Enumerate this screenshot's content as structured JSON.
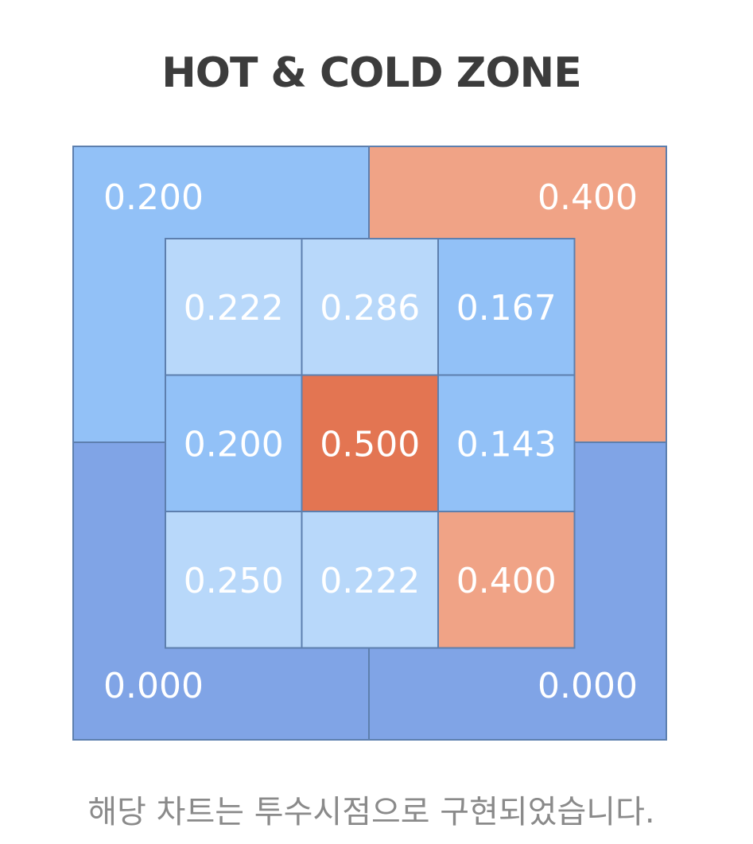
{
  "title": "HOT & COLD ZONE",
  "footnote": "해당 차트는 투수시점으로 구현되었습니다.",
  "chart_data": {
    "type": "heatmap",
    "title": "HOT & COLD ZONE",
    "inner_zone": {
      "rows": 3,
      "cols": 3,
      "values": [
        [
          0.222,
          0.286,
          0.167
        ],
        [
          0.2,
          0.5,
          0.143
        ],
        [
          0.25,
          0.222,
          0.4
        ]
      ],
      "labels": [
        [
          "0.222",
          "0.286",
          "0.167"
        ],
        [
          "0.200",
          "0.500",
          "0.143"
        ],
        [
          "0.250",
          "0.222",
          "0.400"
        ]
      ]
    },
    "outer_zone": {
      "top-left": {
        "value": 0.2,
        "label": "0.200"
      },
      "top-right": {
        "value": 0.4,
        "label": "0.400"
      },
      "bottom-left": {
        "value": 0.0,
        "label": "0.000"
      },
      "bottom-right": {
        "value": 0.0,
        "label": "0.000"
      }
    },
    "colors": {
      "very_cold": "#80a4e6",
      "cold": "#92c1f7",
      "cool": "#b8d8fa",
      "warm": "#f0a386",
      "hot": "#e37552",
      "border": "#5d7fae",
      "value_text": "#ffffff"
    }
  }
}
